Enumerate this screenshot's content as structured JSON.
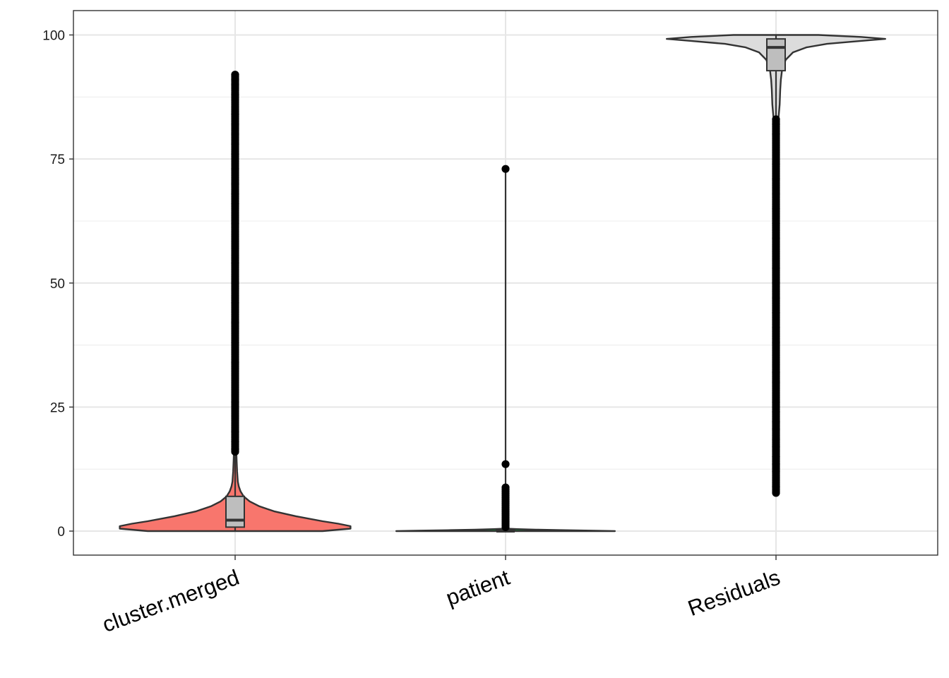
{
  "chart_data": {
    "type": "violin",
    "title": "",
    "xlabel": "",
    "ylabel": "",
    "ylim": [
      -5,
      105
    ],
    "yticks": [
      0,
      25,
      50,
      75,
      100
    ],
    "grid": true,
    "legend": "none",
    "categories": [
      "cluster.merged",
      "patient",
      "Residuals"
    ],
    "groups": [
      {
        "name": "cluster.merged",
        "fill": "#F8766D",
        "box": {
          "whisker_low": 0,
          "q1": 0.8,
          "median": 2.2,
          "q3": 7.0,
          "whisker_high": 16
        },
        "outliers_range": [
          16,
          92
        ],
        "outlier_samples": [
          16.5,
          18,
          20,
          23,
          26,
          30,
          34,
          38,
          42,
          46,
          50,
          54,
          58,
          62,
          66,
          68,
          70,
          73,
          76,
          78,
          80,
          82,
          84,
          86,
          88,
          90,
          91,
          92
        ],
        "density": [
          [
            0,
            0.72
          ],
          [
            0.5,
            0.95
          ],
          [
            1,
            0.95
          ],
          [
            1.5,
            0.85
          ],
          [
            2,
            0.72
          ],
          [
            3,
            0.5
          ],
          [
            4,
            0.32
          ],
          [
            5,
            0.2
          ],
          [
            6,
            0.12
          ],
          [
            7,
            0.07
          ],
          [
            8,
            0.045
          ],
          [
            9,
            0.03
          ],
          [
            10,
            0.022
          ],
          [
            12,
            0.016
          ],
          [
            14,
            0.013
          ],
          [
            16,
            0.01
          ],
          [
            17,
            0.003
          ],
          [
            17.6,
            0
          ]
        ]
      },
      {
        "name": "patient",
        "fill": "#00BA38",
        "box": {
          "whisker_low": 0,
          "q1": 0,
          "median": 0,
          "q3": 0.3,
          "whisker_high": 73
        },
        "outliers_range": [
          0.5,
          73
        ],
        "outlier_samples": [
          0.8,
          1.2,
          1.6,
          2.0,
          2.4,
          2.8,
          3.2,
          3.6,
          4.0,
          4.4,
          4.8,
          5.2,
          5.6,
          6.0,
          6.4,
          6.8,
          7.2,
          7.6,
          8.0,
          8.4,
          8.8,
          13.5,
          73
        ],
        "density": [
          [
            0,
            0.9
          ],
          [
            0.1,
            0.7
          ],
          [
            0.2,
            0.45
          ],
          [
            0.3,
            0.25
          ],
          [
            0.4,
            0.1
          ],
          [
            0.5,
            0
          ]
        ]
      },
      {
        "name": "Residuals",
        "fill": "#DCDCDC",
        "box": {
          "whisker_low": 82,
          "q1": 92.8,
          "median": 97.5,
          "q3": 99.2,
          "whisker_high": 100
        },
        "outliers_range": [
          7.7,
          83
        ],
        "outlier_samples": [
          7.7,
          9,
          10.5,
          12,
          13.5,
          15,
          17,
          18.5,
          20.5,
          22,
          24,
          26,
          28,
          30,
          32,
          35,
          38,
          41,
          44,
          47,
          50,
          53,
          56,
          59,
          62,
          65,
          68,
          71,
          74,
          77,
          80,
          82,
          83
        ],
        "density": [
          [
            100,
            0.35
          ],
          [
            99.6,
            0.7
          ],
          [
            99.2,
            0.9
          ],
          [
            98.8,
            0.7
          ],
          [
            98.2,
            0.42
          ],
          [
            97.5,
            0.25
          ],
          [
            96.5,
            0.14
          ],
          [
            95,
            0.08
          ],
          [
            93,
            0.05
          ],
          [
            91,
            0.04
          ],
          [
            89,
            0.035
          ],
          [
            86,
            0.03
          ],
          [
            83,
            0.02
          ],
          [
            82,
            0
          ]
        ]
      }
    ]
  }
}
